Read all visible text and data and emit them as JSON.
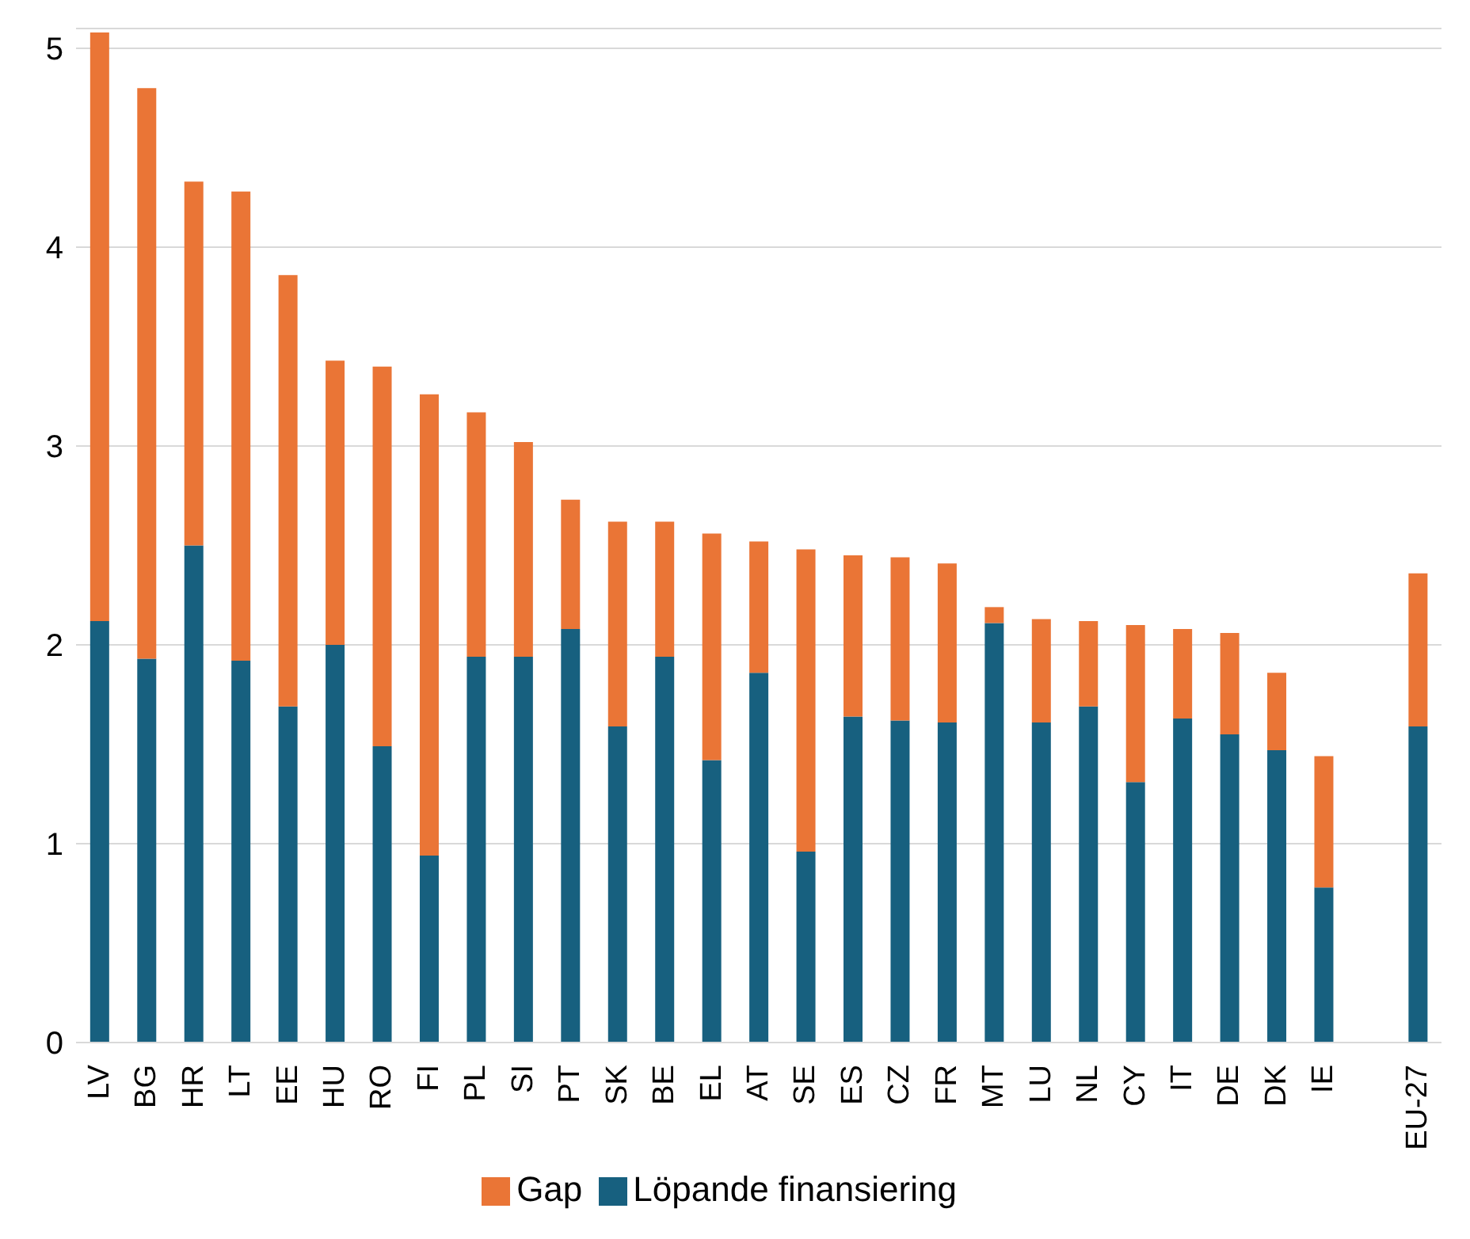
{
  "chart_data": {
    "type": "bar",
    "stacked": true,
    "categories": [
      "LV",
      "BG",
      "HR",
      "LT",
      "EE",
      "HU",
      "RO",
      "FI",
      "PL",
      "SI",
      "PT",
      "SK",
      "BE",
      "EL",
      "AT",
      "SE",
      "ES",
      "CZ",
      "FR",
      "MT",
      "LU",
      "NL",
      "CY",
      "IT",
      "DE",
      "DK",
      "IE",
      null,
      "EU-27"
    ],
    "series": [
      {
        "name": "Löpande finansiering",
        "color": "#17607f",
        "values": [
          2.12,
          1.93,
          2.5,
          1.92,
          1.69,
          2.0,
          1.49,
          0.94,
          1.94,
          1.94,
          2.08,
          1.59,
          1.94,
          1.42,
          1.86,
          0.96,
          1.64,
          1.62,
          1.61,
          2.11,
          1.61,
          1.69,
          1.31,
          1.63,
          1.55,
          1.47,
          0.78,
          null,
          1.59
        ]
      },
      {
        "name": "Gap",
        "color": "#ea7536",
        "values": [
          2.96,
          2.87,
          1.83,
          2.36,
          2.17,
          1.43,
          1.91,
          2.32,
          1.23,
          1.08,
          0.65,
          1.03,
          0.68,
          1.14,
          0.66,
          1.52,
          0.81,
          0.82,
          0.8,
          0.08,
          0.52,
          0.43,
          0.79,
          0.45,
          0.51,
          0.39,
          0.66,
          null,
          0.77
        ]
      }
    ],
    "ylim": [
      0,
      5.1
    ],
    "yticks": [
      0,
      1,
      2,
      3,
      4,
      5
    ],
    "grid": "y",
    "legend": "bottom"
  }
}
